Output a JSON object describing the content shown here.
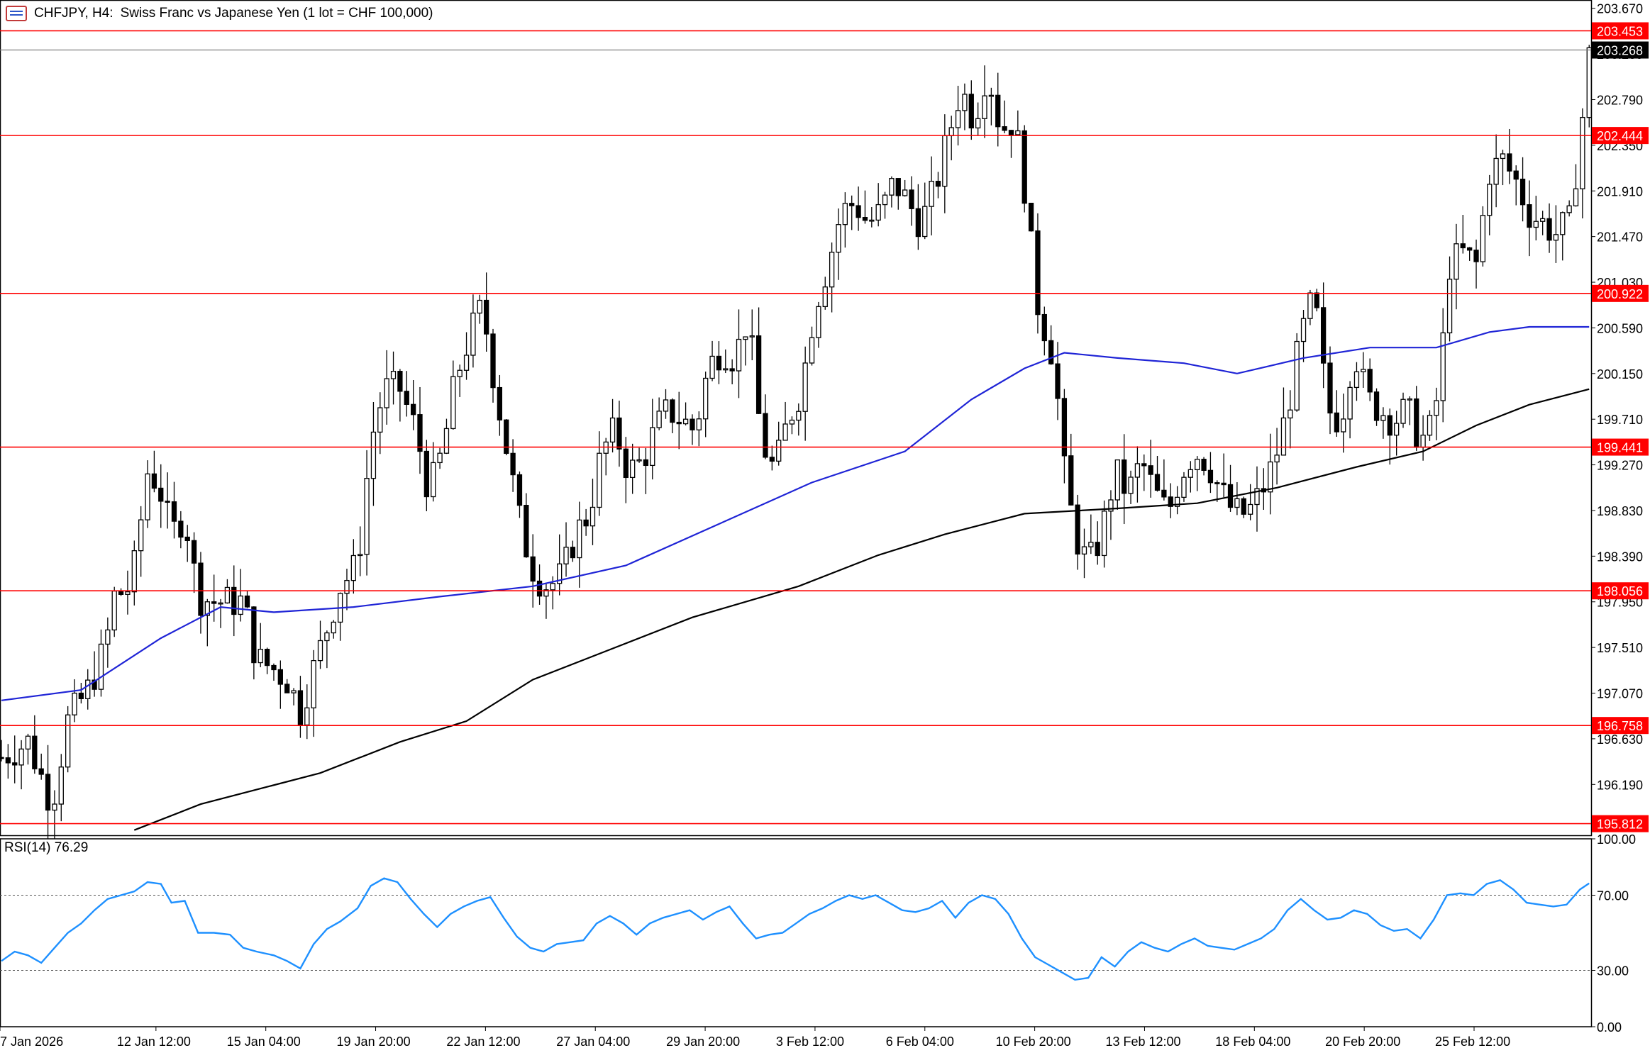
{
  "header": {
    "symbol": "CHFJPY, H4:",
    "description": "Swiss Franc vs Japanese Yen (1 lot = CHF 100,000)"
  },
  "rsi": {
    "label": "RSI(14) 76.29"
  },
  "colors": {
    "bull_candle": "#ffffff",
    "bear_candle": "#000000",
    "ma_fast": "#1f24d6",
    "ma_slow": "#000000",
    "level_line": "#ff0000",
    "rsi_line": "#1e90ff",
    "current_price_line": "#7f7f7f"
  },
  "chart_data": [
    {
      "type": "candlestick",
      "symbol": "CHFJPY",
      "timeframe": "H4",
      "ylim": [
        195.7,
        203.75
      ],
      "y_ticks": [
        "203.670",
        "203.230",
        "202.790",
        "202.350",
        "201.910",
        "201.470",
        "201.030",
        "200.590",
        "200.150",
        "199.710",
        "199.270",
        "198.830",
        "198.390",
        "197.950",
        "197.510",
        "197.070",
        "196.630",
        "196.190"
      ],
      "x_tick_labels": [
        "7 Jan 2026",
        "12 Jan 12:00",
        "15 Jan 04:00",
        "19 Jan 20:00",
        "22 Jan 12:00",
        "27 Jan 04:00",
        "29 Jan 20:00",
        "3 Feb 12:00",
        "6 Feb 04:00",
        "10 Feb 20:00",
        "13 Feb 12:00",
        "18 Feb 04:00",
        "20 Feb 20:00",
        "25 Feb 12:00"
      ],
      "horizontal_levels": [
        203.453,
        202.444,
        200.922,
        199.441,
        198.056,
        196.758,
        195.812
      ],
      "current_price": 203.268,
      "close_path": [
        [
          0,
          196.45
        ],
        [
          20,
          196.6
        ],
        [
          38,
          196.0
        ],
        [
          50,
          196.8
        ],
        [
          65,
          197.1
        ],
        [
          78,
          197.5
        ],
        [
          85,
          198.0
        ],
        [
          98,
          198.1
        ],
        [
          110,
          199.2
        ],
        [
          118,
          199.1
        ],
        [
          128,
          198.6
        ],
        [
          138,
          198.8
        ],
        [
          148,
          198.0
        ],
        [
          160,
          197.95
        ],
        [
          172,
          197.95
        ],
        [
          182,
          197.95
        ],
        [
          192,
          197.4
        ],
        [
          205,
          197.3
        ],
        [
          215,
          197.2
        ],
        [
          225,
          196.9
        ],
        [
          235,
          197.3
        ],
        [
          245,
          197.7
        ],
        [
          255,
          198.1
        ],
        [
          268,
          198.3
        ],
        [
          278,
          199.5
        ],
        [
          288,
          200.0
        ],
        [
          300,
          200.0
        ],
        [
          312,
          199.6
        ],
        [
          322,
          199.0
        ],
        [
          332,
          199.4
        ],
        [
          342,
          200.1
        ],
        [
          352,
          200.5
        ],
        [
          362,
          200.8
        ],
        [
          372,
          200.0
        ],
        [
          382,
          199.3
        ],
        [
          392,
          198.6
        ],
        [
          402,
          198.2
        ],
        [
          412,
          198.1
        ],
        [
          422,
          198.2
        ],
        [
          432,
          198.6
        ],
        [
          442,
          198.8
        ],
        [
          452,
          199.4
        ],
        [
          462,
          199.6
        ],
        [
          472,
          199.2
        ],
        [
          482,
          199.3
        ],
        [
          492,
          199.6
        ],
        [
          502,
          199.8
        ],
        [
          512,
          199.7
        ],
        [
          522,
          199.6
        ],
        [
          532,
          200.2
        ],
        [
          542,
          200.4
        ],
        [
          552,
          200.3
        ],
        [
          562,
          200.7
        ],
        [
          572,
          199.5
        ],
        [
          582,
          199.2
        ],
        [
          592,
          199.7
        ],
        [
          602,
          200.0
        ],
        [
          612,
          200.8
        ],
        [
          622,
          201.2
        ],
        [
          632,
          201.7
        ],
        [
          642,
          201.8
        ],
        [
          652,
          201.6
        ],
        [
          662,
          201.7
        ],
        [
          672,
          202.0
        ],
        [
          682,
          201.8
        ],
        [
          692,
          201.6
        ],
        [
          702,
          201.9
        ],
        [
          712,
          202.4
        ],
        [
          722,
          202.9
        ],
        [
          732,
          202.6
        ],
        [
          742,
          203.1
        ],
        [
          752,
          202.5
        ],
        [
          762,
          202.6
        ],
        [
          772,
          201.8
        ],
        [
          778,
          200.9
        ],
        [
          785,
          200.6
        ],
        [
          792,
          200.3
        ],
        [
          800,
          199.2
        ],
        [
          808,
          198.6
        ],
        [
          818,
          198.3
        ],
        [
          828,
          198.6
        ],
        [
          838,
          199.2
        ],
        [
          848,
          199.0
        ],
        [
          858,
          199.3
        ],
        [
          868,
          199.0
        ],
        [
          878,
          198.8
        ],
        [
          888,
          199.2
        ],
        [
          898,
          199.4
        ],
        [
          908,
          199.3
        ],
        [
          918,
          199.0
        ],
        [
          928,
          198.8
        ],
        [
          938,
          198.8
        ],
        [
          948,
          199.0
        ],
        [
          958,
          199.3
        ],
        [
          968,
          199.8
        ],
        [
          978,
          200.5
        ],
        [
          988,
          200.9
        ],
        [
          998,
          199.8
        ],
        [
          1008,
          199.7
        ],
        [
          1018,
          200.4
        ],
        [
          1028,
          199.9
        ],
        [
          1038,
          199.8
        ],
        [
          1048,
          199.7
        ],
        [
          1058,
          199.8
        ],
        [
          1068,
          199.5
        ],
        [
          1075,
          199.6
        ],
        [
          1082,
          200.0
        ],
        [
          1090,
          201.2
        ],
        [
          1100,
          201.3
        ],
        [
          1110,
          201.2
        ],
        [
          1120,
          202.1
        ],
        [
          1130,
          202.2
        ],
        [
          1140,
          202.0
        ],
        [
          1150,
          201.7
        ],
        [
          1160,
          201.6
        ],
        [
          1170,
          201.5
        ],
        [
          1180,
          201.6
        ],
        [
          1188,
          202.4
        ],
        [
          1195,
          203.2
        ]
      ],
      "series": [
        {
          "name": "MA fast",
          "points": [
            [
              0,
              197.0
            ],
            [
              60,
              197.1
            ],
            [
              120,
              197.6
            ],
            [
              165,
              197.9
            ],
            [
              205,
              197.85
            ],
            [
              265,
              197.9
            ],
            [
              330,
              198.0
            ],
            [
              400,
              198.1
            ],
            [
              470,
              198.3
            ],
            [
              540,
              198.7
            ],
            [
              610,
              199.1
            ],
            [
              680,
              199.4
            ],
            [
              730,
              199.9
            ],
            [
              770,
              200.2
            ],
            [
              800,
              200.35
            ],
            [
              840,
              200.3
            ],
            [
              890,
              200.25
            ],
            [
              930,
              200.15
            ],
            [
              980,
              200.3
            ],
            [
              1030,
              200.4
            ],
            [
              1080,
              200.4
            ],
            [
              1120,
              200.55
            ],
            [
              1150,
              200.6
            ],
            [
              1195,
              200.6
            ]
          ]
        },
        {
          "name": "MA slow",
          "points": [
            [
              100,
              195.75
            ],
            [
              150,
              196.0
            ],
            [
              240,
              196.3
            ],
            [
              300,
              196.6
            ],
            [
              350,
              196.8
            ],
            [
              400,
              197.2
            ],
            [
              460,
              197.5
            ],
            [
              520,
              197.8
            ],
            [
              600,
              198.1
            ],
            [
              660,
              198.4
            ],
            [
              710,
              198.6
            ],
            [
              770,
              198.8
            ],
            [
              840,
              198.85
            ],
            [
              900,
              198.9
            ],
            [
              960,
              199.05
            ],
            [
              1020,
              199.25
            ],
            [
              1070,
              199.4
            ],
            [
              1110,
              199.65
            ],
            [
              1150,
              199.85
            ],
            [
              1195,
              200.0
            ]
          ]
        }
      ]
    },
    {
      "type": "line",
      "name": "RSI(14)",
      "ylim": [
        0,
        100
      ],
      "y_ticks": [
        "100.00",
        "70.00",
        "30.00",
        "0.00"
      ],
      "reference_levels": [
        70,
        30
      ],
      "last_value": 76.29,
      "points": [
        [
          0,
          35
        ],
        [
          10,
          40
        ],
        [
          20,
          38
        ],
        [
          30,
          34
        ],
        [
          40,
          42
        ],
        [
          50,
          50
        ],
        [
          60,
          55
        ],
        [
          70,
          62
        ],
        [
          80,
          68
        ],
        [
          90,
          70
        ],
        [
          100,
          72
        ],
        [
          110,
          77
        ],
        [
          120,
          76
        ],
        [
          128,
          66
        ],
        [
          138,
          67
        ],
        [
          148,
          50
        ],
        [
          160,
          50
        ],
        [
          172,
          49
        ],
        [
          182,
          42
        ],
        [
          192,
          40
        ],
        [
          205,
          38
        ],
        [
          215,
          35
        ],
        [
          225,
          31
        ],
        [
          235,
          44
        ],
        [
          245,
          52
        ],
        [
          255,
          56
        ],
        [
          268,
          63
        ],
        [
          278,
          75
        ],
        [
          288,
          79
        ],
        [
          298,
          77
        ],
        [
          308,
          68
        ],
        [
          318,
          60
        ],
        [
          328,
          53
        ],
        [
          338,
          60
        ],
        [
          348,
          64
        ],
        [
          358,
          67
        ],
        [
          368,
          69
        ],
        [
          378,
          58
        ],
        [
          388,
          48
        ],
        [
          398,
          42
        ],
        [
          408,
          40
        ],
        [
          418,
          44
        ],
        [
          428,
          45
        ],
        [
          438,
          46
        ],
        [
          448,
          55
        ],
        [
          458,
          59
        ],
        [
          468,
          55
        ],
        [
          478,
          49
        ],
        [
          488,
          55
        ],
        [
          498,
          58
        ],
        [
          508,
          60
        ],
        [
          518,
          62
        ],
        [
          528,
          57
        ],
        [
          538,
          61
        ],
        [
          548,
          64
        ],
        [
          558,
          55
        ],
        [
          568,
          47
        ],
        [
          578,
          49
        ],
        [
          588,
          50
        ],
        [
          598,
          55
        ],
        [
          608,
          60
        ],
        [
          618,
          63
        ],
        [
          628,
          67
        ],
        [
          638,
          70
        ],
        [
          648,
          68
        ],
        [
          658,
          70
        ],
        [
          668,
          66
        ],
        [
          678,
          62
        ],
        [
          688,
          61
        ],
        [
          698,
          63
        ],
        [
          708,
          67
        ],
        [
          718,
          58
        ],
        [
          728,
          66
        ],
        [
          738,
          70
        ],
        [
          748,
          68
        ],
        [
          758,
          60
        ],
        [
          768,
          47
        ],
        [
          778,
          37
        ],
        [
          788,
          33
        ],
        [
          798,
          29
        ],
        [
          808,
          25
        ],
        [
          818,
          26
        ],
        [
          828,
          37
        ],
        [
          838,
          32
        ],
        [
          848,
          40
        ],
        [
          858,
          45
        ],
        [
          868,
          42
        ],
        [
          878,
          40
        ],
        [
          888,
          44
        ],
        [
          898,
          47
        ],
        [
          908,
          43
        ],
        [
          918,
          42
        ],
        [
          928,
          41
        ],
        [
          938,
          44
        ],
        [
          948,
          47
        ],
        [
          958,
          52
        ],
        [
          968,
          62
        ],
        [
          978,
          68
        ],
        [
          988,
          62
        ],
        [
          998,
          57
        ],
        [
          1008,
          58
        ],
        [
          1018,
          62
        ],
        [
          1028,
          60
        ],
        [
          1038,
          54
        ],
        [
          1048,
          51
        ],
        [
          1058,
          52
        ],
        [
          1068,
          47
        ],
        [
          1078,
          57
        ],
        [
          1088,
          70
        ],
        [
          1098,
          71
        ],
        [
          1108,
          70
        ],
        [
          1118,
          76
        ],
        [
          1128,
          78
        ],
        [
          1138,
          73
        ],
        [
          1148,
          66
        ],
        [
          1158,
          65
        ],
        [
          1168,
          64
        ],
        [
          1178,
          65
        ],
        [
          1188,
          73
        ],
        [
          1195,
          76.29
        ]
      ]
    }
  ]
}
